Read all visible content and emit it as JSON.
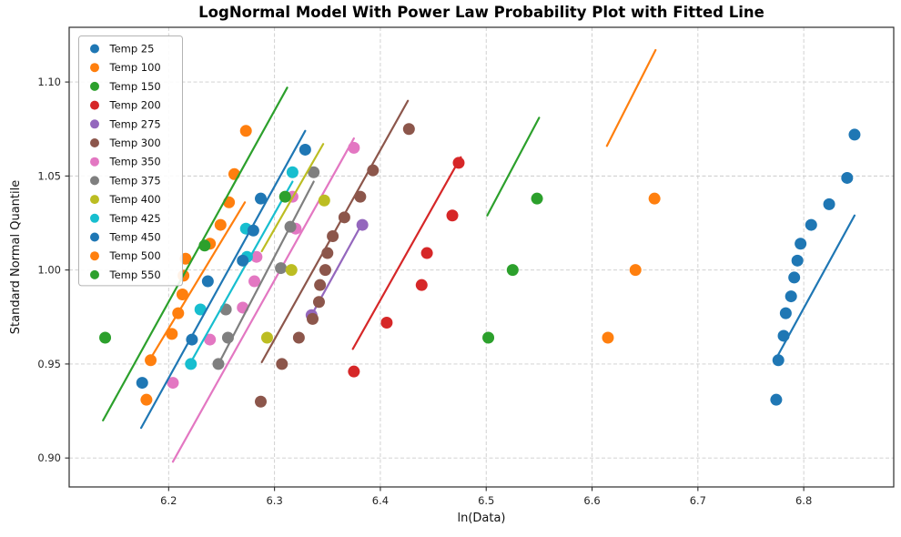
{
  "title": "LogNormal Model With Power Law Probability Plot with Fitted Line",
  "chart_data": {
    "type": "scatter",
    "title": "LogNormal Model With Power Law Probability Plot with Fitted Line",
    "xlabel": "ln(Data)",
    "ylabel": "Standard Normal Quantile",
    "xlim": [
      6.106,
      6.885
    ],
    "ylim": [
      0.8846,
      1.1291
    ],
    "xticks": [
      6.2,
      6.3,
      6.4,
      6.5,
      6.6,
      6.7,
      6.8
    ],
    "xtick_labels": [
      "6.2",
      "6.3",
      "6.4",
      "6.5",
      "6.6",
      "6.7",
      "6.8"
    ],
    "yticks": [
      0.9,
      0.95,
      1.0,
      1.05,
      1.1
    ],
    "ytick_labels": [
      "0.90",
      "0.95",
      "1.00",
      "1.05",
      "1.10"
    ],
    "grid": true,
    "grid_color": "#cccccc",
    "frame_color": "#2b2b2b",
    "legend_position": "upper left",
    "marker_radius": 6.5,
    "line_width": 2.2,
    "series": [
      {
        "name": "Temp 25",
        "color": "#1f77b4",
        "points": [
          [
            6.774,
            0.931
          ],
          [
            6.776,
            0.952
          ],
          [
            6.781,
            0.965
          ],
          [
            6.783,
            0.977
          ],
          [
            6.788,
            0.986
          ],
          [
            6.791,
            0.996
          ],
          [
            6.794,
            1.005
          ],
          [
            6.797,
            1.014
          ],
          [
            6.807,
            1.024
          ],
          [
            6.824,
            1.035
          ],
          [
            6.841,
            1.049
          ],
          [
            6.848,
            1.072
          ]
        ],
        "fit_line": [
          [
            6.775,
            0.954
          ],
          [
            6.848,
            1.029
          ]
        ]
      },
      {
        "name": "Temp 100",
        "color": "#ff7f0e",
        "points": [
          [
            6.615,
            0.964
          ],
          [
            6.641,
            1.0
          ],
          [
            6.659,
            1.038
          ]
        ],
        "fit_line": [
          [
            6.614,
            1.066
          ],
          [
            6.66,
            1.117
          ]
        ]
      },
      {
        "name": "Temp 150",
        "color": "#2ca02c",
        "points": [
          [
            6.502,
            0.964
          ],
          [
            6.525,
            1.0
          ],
          [
            6.548,
            1.038
          ]
        ],
        "fit_line": [
          [
            6.501,
            1.029
          ],
          [
            6.55,
            1.081
          ]
        ]
      },
      {
        "name": "Temp 200",
        "color": "#d62728",
        "points": [
          [
            6.375,
            0.946
          ],
          [
            6.406,
            0.972
          ],
          [
            6.439,
            0.992
          ],
          [
            6.444,
            1.009
          ],
          [
            6.468,
            1.029
          ],
          [
            6.474,
            1.057
          ]
        ],
        "fit_line": [
          [
            6.374,
            0.958
          ],
          [
            6.476,
            1.06
          ]
        ]
      },
      {
        "name": "Temp 275",
        "color": "#9467bd",
        "points": [
          [
            6.335,
            0.976
          ],
          [
            6.383,
            1.024
          ]
        ],
        "fit_line": [
          [
            6.335,
            0.976
          ],
          [
            6.384,
            1.026
          ]
        ]
      },
      {
        "name": "Temp 300",
        "color": "#8c564b",
        "points": [
          [
            6.287,
            0.93
          ],
          [
            6.307,
            0.95
          ],
          [
            6.323,
            0.964
          ],
          [
            6.336,
            0.974
          ],
          [
            6.342,
            0.983
          ],
          [
            6.343,
            0.992
          ],
          [
            6.348,
            1.0
          ],
          [
            6.35,
            1.009
          ],
          [
            6.355,
            1.018
          ],
          [
            6.366,
            1.028
          ],
          [
            6.381,
            1.039
          ],
          [
            6.393,
            1.053
          ],
          [
            6.427,
            1.075
          ]
        ],
        "fit_line": [
          [
            6.288,
            0.951
          ],
          [
            6.426,
            1.09
          ]
        ]
      },
      {
        "name": "Temp 350",
        "color": "#e377c2",
        "points": [
          [
            6.204,
            0.94
          ],
          [
            6.239,
            0.963
          ],
          [
            6.27,
            0.98
          ],
          [
            6.281,
            0.994
          ],
          [
            6.283,
            1.007
          ],
          [
            6.32,
            1.022
          ],
          [
            6.317,
            1.039
          ],
          [
            6.375,
            1.065
          ]
        ],
        "fit_line": [
          [
            6.204,
            0.898
          ],
          [
            6.375,
            1.07
          ]
        ]
      },
      {
        "name": "Temp 375",
        "color": "#7f7f7f",
        "points": [
          [
            6.247,
            0.95
          ],
          [
            6.256,
            0.964
          ],
          [
            6.254,
            0.979
          ],
          [
            6.306,
            1.001
          ],
          [
            6.315,
            1.023
          ],
          [
            6.337,
            1.052
          ]
        ],
        "fit_line": [
          [
            6.248,
            0.951
          ],
          [
            6.337,
            1.047
          ]
        ]
      },
      {
        "name": "Temp 400",
        "color": "#bcbd22",
        "points": [
          [
            6.293,
            0.964
          ],
          [
            6.316,
            1.0
          ],
          [
            6.347,
            1.037
          ]
        ],
        "fit_line": [
          [
            6.288,
            1.01
          ],
          [
            6.346,
            1.067
          ]
        ]
      },
      {
        "name": "Temp 425",
        "color": "#17becf",
        "points": [
          [
            6.221,
            0.95
          ],
          [
            6.23,
            0.979
          ],
          [
            6.274,
            1.007
          ],
          [
            6.273,
            1.022
          ],
          [
            6.317,
            1.052
          ]
        ],
        "fit_line": [
          [
            6.222,
            0.952
          ],
          [
            6.317,
            1.047
          ]
        ]
      },
      {
        "name": "Temp 450",
        "color": "#1f77b4",
        "points": [
          [
            6.175,
            0.94
          ],
          [
            6.222,
            0.963
          ],
          [
            6.237,
            0.994
          ],
          [
            6.27,
            1.005
          ],
          [
            6.28,
            1.021
          ],
          [
            6.287,
            1.038
          ],
          [
            6.329,
            1.064
          ]
        ],
        "fit_line": [
          [
            6.174,
            0.916
          ],
          [
            6.329,
            1.074
          ]
        ]
      },
      {
        "name": "Temp 500",
        "color": "#ff7f0e",
        "points": [
          [
            6.179,
            0.931
          ],
          [
            6.183,
            0.952
          ],
          [
            6.203,
            0.966
          ],
          [
            6.209,
            0.977
          ],
          [
            6.213,
            0.987
          ],
          [
            6.214,
            0.997
          ],
          [
            6.216,
            1.006
          ],
          [
            6.239,
            1.014
          ],
          [
            6.249,
            1.024
          ],
          [
            6.257,
            1.036
          ],
          [
            6.262,
            1.051
          ],
          [
            6.273,
            1.074
          ]
        ],
        "fit_line": [
          [
            6.184,
            0.954
          ],
          [
            6.272,
            1.036
          ]
        ]
      },
      {
        "name": "Temp 550",
        "color": "#2ca02c",
        "points": [
          [
            6.14,
            0.964
          ],
          [
            6.234,
            1.013
          ],
          [
            6.31,
            1.039
          ]
        ],
        "fit_line": [
          [
            6.138,
            0.92
          ],
          [
            6.312,
            1.097
          ]
        ]
      }
    ]
  }
}
